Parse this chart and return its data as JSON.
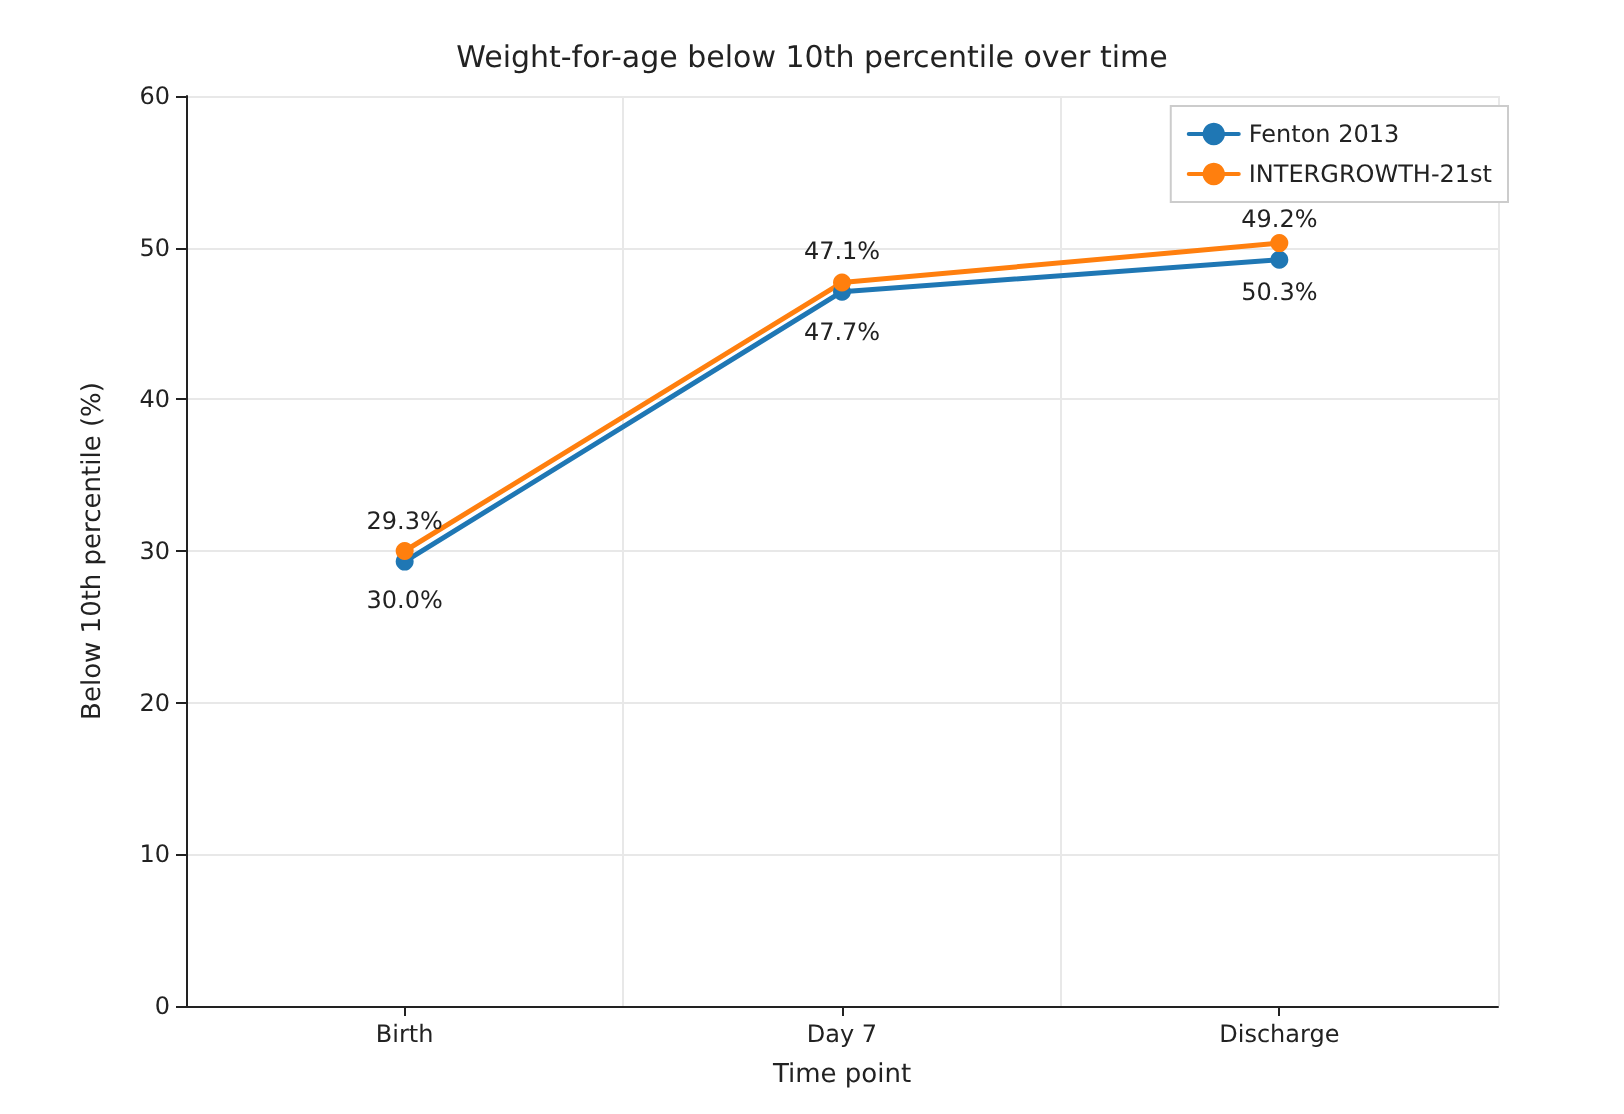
{
  "chart_data": {
    "type": "line",
    "title": "Weight-for-age below 10th percentile over time",
    "xlabel": "Time point",
    "ylabel": "Below 10th percentile (%)",
    "categories": [
      "Birth",
      "Day 7",
      "Discharge"
    ],
    "series": [
      {
        "name": "Fenton 2013",
        "color": "#1f77b4",
        "values": [
          29.3,
          47.1,
          49.2
        ],
        "value_labels": [
          "29.3%",
          "47.1%",
          "49.2%"
        ]
      },
      {
        "name": "INTERGROWTH-21st",
        "color": "#ff7f0e",
        "values": [
          30.0,
          47.7,
          50.3
        ],
        "value_labels": [
          "30.0%",
          "47.7%",
          "50.3%"
        ]
      }
    ],
    "ylim": [
      0,
      60
    ],
    "yticks": [
      0,
      10,
      20,
      30,
      40,
      50,
      60
    ],
    "grid": true,
    "legend": "top right",
    "marker": "circle",
    "line_style": "solid"
  }
}
